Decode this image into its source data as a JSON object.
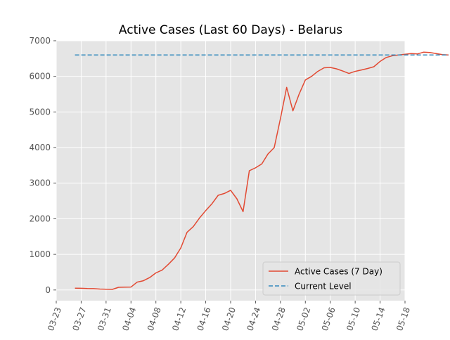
{
  "chart_data": {
    "type": "line",
    "title": "Active Cases (Last 60 Days) - Belarus",
    "xlabel": "",
    "ylabel": "",
    "x_tick_labels": [
      "03-23",
      "03-27",
      "03-31",
      "04-04",
      "04-08",
      "04-12",
      "04-16",
      "04-20",
      "04-24",
      "04-28",
      "05-02",
      "05-06",
      "05-10",
      "05-14",
      "05-18"
    ],
    "y_ticks": [
      0,
      1000,
      2000,
      3000,
      4000,
      5000,
      6000,
      7000
    ],
    "xlim": [
      "03-23",
      "05-18"
    ],
    "ylim": [
      -300,
      7000
    ],
    "grid": true,
    "legend_position": "lower-right",
    "series": [
      {
        "name": "Active Cases (7 Day)",
        "style": "solid",
        "color": "#E24A33",
        "points": [
          [
            "03-26",
            50
          ],
          [
            "03-27",
            48
          ],
          [
            "03-28",
            40
          ],
          [
            "03-29",
            38
          ],
          [
            "03-30",
            25
          ],
          [
            "03-31",
            20
          ],
          [
            "04-01",
            15
          ],
          [
            "04-02",
            75
          ],
          [
            "04-03",
            80
          ],
          [
            "04-04",
            82
          ],
          [
            "04-05",
            220
          ],
          [
            "04-06",
            260
          ],
          [
            "04-07",
            350
          ],
          [
            "04-08",
            480
          ],
          [
            "04-09",
            560
          ],
          [
            "04-10",
            720
          ],
          [
            "04-11",
            900
          ],
          [
            "04-12",
            1180
          ],
          [
            "04-13",
            1620
          ],
          [
            "04-14",
            1780
          ],
          [
            "04-15",
            2020
          ],
          [
            "04-16",
            2230
          ],
          [
            "04-17",
            2420
          ],
          [
            "04-18",
            2660
          ],
          [
            "04-19",
            2710
          ],
          [
            "04-20",
            2800
          ],
          [
            "04-21",
            2560
          ],
          [
            "04-22",
            2200
          ],
          [
            "04-23",
            3350
          ],
          [
            "04-24",
            3430
          ],
          [
            "04-25",
            3540
          ],
          [
            "04-26",
            3820
          ],
          [
            "04-27",
            4000
          ],
          [
            "04-28",
            4820
          ],
          [
            "04-29",
            5690
          ],
          [
            "04-30",
            5030
          ],
          [
            "05-01",
            5500
          ],
          [
            "05-02",
            5900
          ],
          [
            "05-03",
            6000
          ],
          [
            "05-04",
            6140
          ],
          [
            "05-05",
            6240
          ],
          [
            "05-06",
            6250
          ],
          [
            "05-07",
            6210
          ],
          [
            "05-08",
            6150
          ],
          [
            "05-09",
            6080
          ],
          [
            "05-10",
            6140
          ],
          [
            "05-11",
            6180
          ],
          [
            "05-12",
            6220
          ],
          [
            "05-13",
            6270
          ],
          [
            "05-14",
            6420
          ],
          [
            "05-15",
            6530
          ],
          [
            "05-16",
            6580
          ],
          [
            "05-17",
            6600
          ],
          [
            "05-18",
            6620
          ],
          [
            "05-19",
            6640
          ],
          [
            "05-20",
            6630
          ],
          [
            "05-21",
            6680
          ],
          [
            "05-22",
            6670
          ],
          [
            "05-23",
            6640
          ],
          [
            "05-24",
            6610
          ],
          [
            "05-25",
            6600
          ]
        ]
      },
      {
        "name": "Current Level",
        "style": "dashed",
        "color": "#348ABD",
        "points": [
          [
            "03-26",
            6600
          ],
          [
            "05-25",
            6600
          ]
        ]
      }
    ]
  }
}
